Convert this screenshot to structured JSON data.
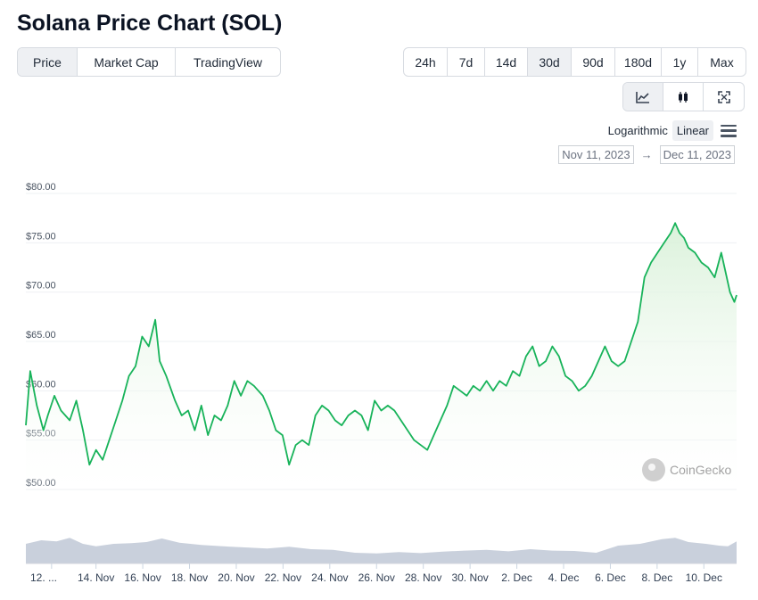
{
  "page_title": "Solana Price Chart (SOL)",
  "view_tabs": [
    {
      "label": "Price",
      "active": true
    },
    {
      "label": "Market Cap",
      "active": false
    },
    {
      "label": "TradingView",
      "active": false
    }
  ],
  "range_tabs": [
    {
      "label": "24h",
      "active": false
    },
    {
      "label": "7d",
      "active": false
    },
    {
      "label": "14d",
      "active": false
    },
    {
      "label": "30d",
      "active": true
    },
    {
      "label": "90d",
      "active": false
    },
    {
      "label": "180d",
      "active": false
    },
    {
      "label": "1y",
      "active": false
    },
    {
      "label": "Max",
      "active": false
    }
  ],
  "chart_type_buttons": [
    {
      "icon": "line-chart-icon",
      "active": true
    },
    {
      "icon": "candlestick-icon",
      "active": false
    },
    {
      "icon": "fullscreen-icon",
      "active": false
    }
  ],
  "scale": {
    "logarithmic": "Logarithmic",
    "linear": "Linear",
    "active": "linear"
  },
  "date_range": {
    "from": "Nov 11, 2023",
    "arrow": "→",
    "to": "Dec 11, 2023"
  },
  "watermark": "CoinGecko",
  "colors": {
    "line": "#18b35a",
    "area_top": "#d9f1d9",
    "volume": "#c9d0dc",
    "grid": "#eef0f3"
  },
  "chart_data": {
    "type": "line",
    "title": "Solana Price Chart (SOL)",
    "ylim": [
      50,
      80
    ],
    "y_ticks": [
      "$80.00",
      "$75.00",
      "$70.00",
      "$65.00",
      "$60.00",
      "$55.00",
      "$50.00"
    ],
    "y_tick_values": [
      80,
      75,
      70,
      65,
      60,
      55,
      50
    ],
    "x_ticks": [
      "12. ...",
      "14. Nov",
      "16. Nov",
      "18. Nov",
      "20. Nov",
      "22. Nov",
      "24. Nov",
      "26. Nov",
      "28. Nov",
      "30. Nov",
      "2. Dec",
      "4. Dec",
      "6. Dec",
      "8. Dec",
      "10. Dec"
    ],
    "x_tick_days": [
      1.1,
      3,
      5,
      7,
      9,
      11,
      13,
      15,
      17,
      19,
      21,
      23,
      25,
      27,
      29
    ],
    "x_range_days": [
      0,
      30.4
    ],
    "series": [
      {
        "points": [
          [
            0.0,
            56.5
          ],
          [
            0.2,
            62.0
          ],
          [
            0.5,
            58.5
          ],
          [
            0.8,
            56.0
          ],
          [
            1.0,
            57.5
          ],
          [
            1.3,
            59.5
          ],
          [
            1.6,
            58.0
          ],
          [
            2.0,
            57.0
          ],
          [
            2.3,
            59.0
          ],
          [
            2.6,
            56.0
          ],
          [
            2.9,
            52.5
          ],
          [
            3.2,
            54.0
          ],
          [
            3.5,
            53.0
          ],
          [
            3.8,
            55.0
          ],
          [
            4.1,
            57.0
          ],
          [
            4.4,
            59.0
          ],
          [
            4.7,
            61.5
          ],
          [
            5.0,
            62.5
          ],
          [
            5.3,
            65.5
          ],
          [
            5.6,
            64.5
          ],
          [
            5.9,
            67.2
          ],
          [
            6.1,
            63.0
          ],
          [
            6.4,
            61.5
          ],
          [
            6.8,
            59.0
          ],
          [
            7.1,
            57.5
          ],
          [
            7.4,
            58.0
          ],
          [
            7.7,
            56.0
          ],
          [
            8.0,
            58.5
          ],
          [
            8.3,
            55.5
          ],
          [
            8.6,
            57.5
          ],
          [
            8.9,
            57.0
          ],
          [
            9.2,
            58.5
          ],
          [
            9.5,
            61.0
          ],
          [
            9.8,
            59.5
          ],
          [
            10.1,
            61.0
          ],
          [
            10.4,
            60.5
          ],
          [
            10.8,
            59.5
          ],
          [
            11.1,
            58.0
          ],
          [
            11.4,
            56.0
          ],
          [
            11.7,
            55.5
          ],
          [
            12.0,
            52.5
          ],
          [
            12.3,
            54.5
          ],
          [
            12.6,
            55.0
          ],
          [
            12.9,
            54.5
          ],
          [
            13.2,
            57.5
          ],
          [
            13.5,
            58.5
          ],
          [
            13.8,
            58.0
          ],
          [
            14.1,
            57.0
          ],
          [
            14.4,
            56.5
          ],
          [
            14.7,
            57.5
          ],
          [
            15.0,
            58.0
          ],
          [
            15.3,
            57.5
          ],
          [
            15.6,
            56.0
          ],
          [
            15.9,
            59.0
          ],
          [
            16.2,
            58.0
          ],
          [
            16.5,
            58.5
          ],
          [
            16.8,
            58.0
          ],
          [
            17.1,
            57.0
          ],
          [
            17.4,
            56.0
          ],
          [
            17.7,
            55.0
          ],
          [
            18.0,
            54.5
          ],
          [
            18.3,
            54.0
          ],
          [
            18.6,
            55.5
          ],
          [
            18.9,
            57.0
          ],
          [
            19.2,
            58.5
          ],
          [
            19.5,
            60.5
          ],
          [
            19.8,
            60.0
          ],
          [
            20.1,
            59.5
          ],
          [
            20.4,
            60.5
          ],
          [
            20.7,
            60.0
          ],
          [
            21.0,
            61.0
          ],
          [
            21.3,
            60.0
          ],
          [
            21.6,
            61.0
          ],
          [
            21.9,
            60.5
          ],
          [
            22.2,
            62.0
          ],
          [
            22.5,
            61.5
          ],
          [
            22.8,
            63.5
          ],
          [
            23.1,
            64.5
          ],
          [
            23.4,
            62.5
          ],
          [
            23.7,
            63.0
          ],
          [
            24.0,
            64.5
          ],
          [
            24.3,
            63.5
          ],
          [
            24.6,
            61.5
          ],
          [
            24.9,
            61.0
          ],
          [
            25.2,
            60.0
          ],
          [
            25.5,
            60.5
          ],
          [
            25.8,
            61.5
          ],
          [
            26.1,
            63.0
          ],
          [
            26.4,
            64.5
          ],
          [
            26.7,
            63.0
          ],
          [
            27.0,
            62.5
          ],
          [
            27.3,
            63.0
          ],
          [
            27.6,
            65.0
          ],
          [
            27.9,
            67.0
          ],
          [
            28.2,
            71.5
          ],
          [
            28.5,
            73.0
          ],
          [
            28.8,
            74.0
          ],
          [
            29.1,
            75.0
          ],
          [
            29.4,
            76.0
          ],
          [
            29.6,
            77.0
          ],
          [
            29.8,
            76.0
          ],
          [
            30.0,
            75.5
          ],
          [
            30.2,
            74.5
          ],
          [
            30.5,
            74.0
          ],
          [
            30.8,
            73.0
          ],
          [
            31.1,
            72.5
          ],
          [
            31.4,
            71.5
          ],
          [
            31.7,
            74.0
          ],
          [
            31.9,
            72.0
          ],
          [
            32.1,
            70.0
          ],
          [
            32.3,
            69.0
          ],
          [
            32.4,
            69.7
          ]
        ]
      }
    ],
    "volume_shape": [
      [
        0.0,
        0.55
      ],
      [
        0.7,
        0.65
      ],
      [
        1.4,
        0.62
      ],
      [
        2.0,
        0.72
      ],
      [
        2.6,
        0.55
      ],
      [
        3.2,
        0.48
      ],
      [
        4.0,
        0.55
      ],
      [
        4.8,
        0.57
      ],
      [
        5.5,
        0.6
      ],
      [
        6.2,
        0.7
      ],
      [
        7.0,
        0.58
      ],
      [
        8.0,
        0.52
      ],
      [
        9.0,
        0.48
      ],
      [
        10.0,
        0.45
      ],
      [
        11.0,
        0.42
      ],
      [
        12.0,
        0.47
      ],
      [
        13.0,
        0.4
      ],
      [
        14.0,
        0.38
      ],
      [
        15.0,
        0.3
      ],
      [
        16.0,
        0.28
      ],
      [
        17.0,
        0.32
      ],
      [
        18.0,
        0.29
      ],
      [
        19.0,
        0.33
      ],
      [
        20.0,
        0.36
      ],
      [
        21.0,
        0.38
      ],
      [
        22.0,
        0.34
      ],
      [
        23.0,
        0.4
      ],
      [
        24.0,
        0.36
      ],
      [
        25.0,
        0.35
      ],
      [
        26.0,
        0.3
      ],
      [
        27.0,
        0.5
      ],
      [
        28.0,
        0.55
      ],
      [
        29.0,
        0.68
      ],
      [
        29.6,
        0.72
      ],
      [
        30.2,
        0.6
      ],
      [
        31.0,
        0.55
      ],
      [
        31.6,
        0.5
      ],
      [
        32.0,
        0.48
      ],
      [
        32.4,
        0.62
      ]
    ]
  }
}
